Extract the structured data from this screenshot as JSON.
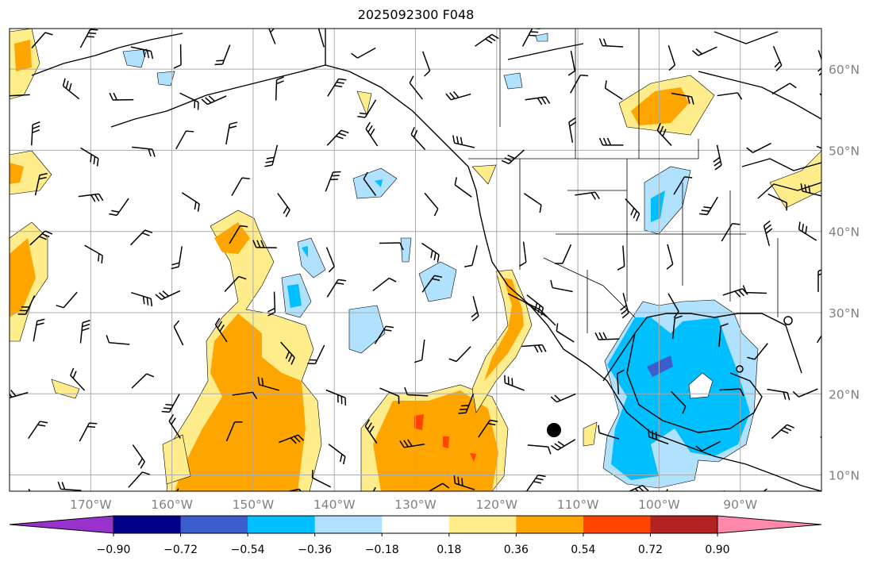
{
  "title": "2025092300 F048",
  "map": {
    "lon_labels": [
      "170°W",
      "160°W",
      "150°W",
      "140°W",
      "130°W",
      "120°W",
      "110°W",
      "100°W",
      "90°W"
    ],
    "lat_labels": [
      "60°N",
      "50°N",
      "40°N",
      "30°N",
      "20°N",
      "10°N"
    ],
    "extent": {
      "lon_min": -180,
      "lon_max": -80,
      "lat_min": 8,
      "lat_max": 65
    }
  },
  "colorbar": {
    "colors": [
      "#9932CC",
      "#00008B",
      "#3B5ECC",
      "#00BFFF",
      "#B0E2FF",
      "#FFFFFF",
      "#FFEC8B",
      "#FFA500",
      "#FF4500",
      "#B22222",
      "#FF88AB"
    ],
    "labels": [
      "−0.90",
      "−0.72",
      "−0.54",
      "−0.36",
      "−0.18",
      "0.18",
      "0.36",
      "0.54",
      "0.72",
      "0.90"
    ],
    "levels": [
      -0.9,
      -0.72,
      -0.54,
      -0.36,
      -0.18,
      0.18,
      0.36,
      0.54,
      0.72,
      0.9
    ],
    "extend": "both"
  }
}
